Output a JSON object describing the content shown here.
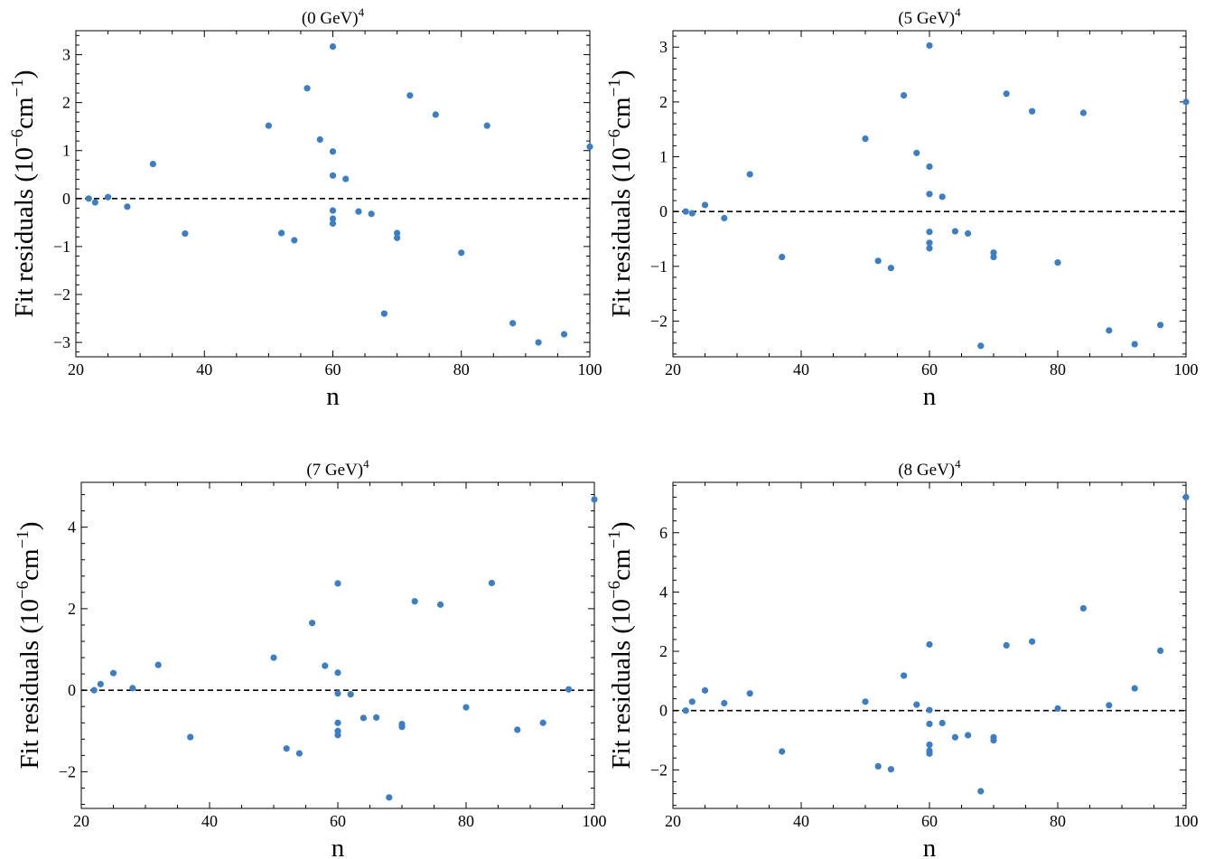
{
  "chart_data": [
    {
      "type": "scatter",
      "title": "(0 GeV)",
      "title_sup": "4",
      "xlabel": "n",
      "ylabel": "Fit residuals (10",
      "ylabel_sup": "−6",
      "ylabel_mid": "cm",
      "ylabel_sup2": "−1",
      "ylabel_end": ")",
      "xlim": [
        20,
        100
      ],
      "ylim": [
        -3.3,
        3.5
      ],
      "xticks": [
        20,
        40,
        60,
        80,
        100
      ],
      "yticks": [
        -3,
        -2,
        -1,
        0,
        1,
        2,
        3
      ],
      "ytick_labels": [
        "−3",
        "−2",
        "−1",
        "0",
        "1",
        "2",
        "3"
      ],
      "zero_line": true,
      "color": "#3a7fc6",
      "points": [
        [
          22,
          0.0
        ],
        [
          23,
          -0.08
        ],
        [
          25,
          0.03
        ],
        [
          28,
          -0.17
        ],
        [
          32,
          0.72
        ],
        [
          37,
          -0.73
        ],
        [
          50,
          1.52
        ],
        [
          52,
          -0.72
        ],
        [
          54,
          -0.87
        ],
        [
          56,
          2.3
        ],
        [
          58,
          1.23
        ],
        [
          60,
          3.17
        ],
        [
          60,
          0.98
        ],
        [
          60,
          0.48
        ],
        [
          60,
          -0.25
        ],
        [
          60,
          -0.42
        ],
        [
          60,
          -0.52
        ],
        [
          62,
          0.41
        ],
        [
          64,
          -0.27
        ],
        [
          66,
          -0.32
        ],
        [
          68,
          -2.4
        ],
        [
          70,
          -0.72
        ],
        [
          70,
          -0.82
        ],
        [
          72,
          2.15
        ],
        [
          76,
          1.75
        ],
        [
          80,
          -1.13
        ],
        [
          84,
          1.52
        ],
        [
          88,
          -2.6
        ],
        [
          92,
          -3.0
        ],
        [
          96,
          -2.83
        ],
        [
          100,
          1.08
        ]
      ]
    },
    {
      "type": "scatter",
      "title": "(5 GeV)",
      "title_sup": "4",
      "xlabel": "n",
      "ylabel": "Fit residuals (10",
      "ylabel_sup": "−6",
      "ylabel_mid": "cm",
      "ylabel_sup2": "−1",
      "ylabel_end": ")",
      "xlim": [
        20,
        100
      ],
      "ylim": [
        -2.65,
        3.3
      ],
      "xticks": [
        20,
        40,
        60,
        80,
        100
      ],
      "yticks": [
        -2,
        -1,
        0,
        1,
        2,
        3
      ],
      "ytick_labels": [
        "−2",
        "−1",
        "0",
        "1",
        "2",
        "3"
      ],
      "zero_line": true,
      "color": "#3a7fc6",
      "points": [
        [
          22,
          0.0
        ],
        [
          23,
          -0.03
        ],
        [
          25,
          0.12
        ],
        [
          28,
          -0.12
        ],
        [
          32,
          0.68
        ],
        [
          37,
          -0.83
        ],
        [
          50,
          1.33
        ],
        [
          52,
          -0.9
        ],
        [
          54,
          -1.03
        ],
        [
          56,
          2.12
        ],
        [
          58,
          1.07
        ],
        [
          60,
          3.03
        ],
        [
          60,
          0.82
        ],
        [
          60,
          0.32
        ],
        [
          60,
          -0.37
        ],
        [
          60,
          -0.57
        ],
        [
          60,
          -0.67
        ],
        [
          62,
          0.27
        ],
        [
          64,
          -0.36
        ],
        [
          66,
          -0.4
        ],
        [
          68,
          -2.45
        ],
        [
          70,
          -0.75
        ],
        [
          70,
          -0.83
        ],
        [
          72,
          2.15
        ],
        [
          76,
          1.83
        ],
        [
          80,
          -0.93
        ],
        [
          84,
          1.8
        ],
        [
          88,
          -2.17
        ],
        [
          92,
          -2.42
        ],
        [
          96,
          -2.07
        ],
        [
          100,
          2.0
        ]
      ]
    },
    {
      "type": "scatter",
      "title": "(7 GeV)",
      "title_sup": "4",
      "xlabel": "n",
      "ylabel": "Fit residuals (10",
      "ylabel_sup": "−6",
      "ylabel_mid": "cm",
      "ylabel_sup2": "−1",
      "ylabel_end": ")",
      "xlim": [
        20,
        100
      ],
      "ylim": [
        -2.9,
        5.1
      ],
      "xticks": [
        20,
        40,
        60,
        80,
        100
      ],
      "yticks": [
        -2,
        0,
        2,
        4
      ],
      "ytick_labels": [
        "−2",
        "0",
        "2",
        "4"
      ],
      "zero_line": true,
      "color": "#3a7fc6",
      "points": [
        [
          22,
          0.0
        ],
        [
          23,
          0.15
        ],
        [
          25,
          0.42
        ],
        [
          28,
          0.05
        ],
        [
          32,
          0.62
        ],
        [
          37,
          -1.15
        ],
        [
          50,
          0.8
        ],
        [
          52,
          -1.43
        ],
        [
          54,
          -1.55
        ],
        [
          56,
          1.65
        ],
        [
          58,
          0.6
        ],
        [
          60,
          2.62
        ],
        [
          60,
          0.43
        ],
        [
          60,
          -0.08
        ],
        [
          60,
          -0.8
        ],
        [
          60,
          -1.0
        ],
        [
          60,
          -1.1
        ],
        [
          62,
          -0.1
        ],
        [
          64,
          -0.68
        ],
        [
          66,
          -0.67
        ],
        [
          68,
          -2.63
        ],
        [
          70,
          -0.83
        ],
        [
          70,
          -0.9
        ],
        [
          72,
          2.18
        ],
        [
          76,
          2.1
        ],
        [
          80,
          -0.42
        ],
        [
          84,
          2.63
        ],
        [
          88,
          -0.97
        ],
        [
          92,
          -0.8
        ],
        [
          96,
          0.02
        ],
        [
          100,
          4.68
        ]
      ]
    },
    {
      "type": "scatter",
      "title": "(8 GeV)",
      "title_sup": "4",
      "xlabel": "n",
      "ylabel": "Fit residuals (10",
      "ylabel_sup": "−6",
      "ylabel_mid": "cm",
      "ylabel_sup2": "−1",
      "ylabel_end": ")",
      "xlim": [
        20,
        100
      ],
      "ylim": [
        -3.3,
        7.7
      ],
      "xticks": [
        20,
        40,
        60,
        80,
        100
      ],
      "yticks": [
        -2,
        0,
        2,
        4,
        6
      ],
      "ytick_labels": [
        "−2",
        "0",
        "2",
        "4",
        "6"
      ],
      "zero_line": true,
      "color": "#3a7fc6",
      "points": [
        [
          22,
          0.0
        ],
        [
          23,
          0.3
        ],
        [
          25,
          0.68
        ],
        [
          28,
          0.25
        ],
        [
          32,
          0.58
        ],
        [
          37,
          -1.38
        ],
        [
          50,
          0.3
        ],
        [
          52,
          -1.88
        ],
        [
          54,
          -1.98
        ],
        [
          56,
          1.18
        ],
        [
          58,
          0.2
        ],
        [
          60,
          2.23
        ],
        [
          60,
          0.02
        ],
        [
          60,
          -0.45
        ],
        [
          60,
          -1.15
        ],
        [
          60,
          -1.35
        ],
        [
          60,
          -1.45
        ],
        [
          62,
          -0.42
        ],
        [
          64,
          -0.9
        ],
        [
          66,
          -0.83
        ],
        [
          68,
          -2.72
        ],
        [
          70,
          -0.9
        ],
        [
          70,
          -1.0
        ],
        [
          72,
          2.2
        ],
        [
          76,
          2.33
        ],
        [
          80,
          0.07
        ],
        [
          84,
          3.45
        ],
        [
          88,
          0.18
        ],
        [
          92,
          0.75
        ],
        [
          96,
          2.02
        ],
        [
          100,
          7.2
        ]
      ]
    }
  ]
}
